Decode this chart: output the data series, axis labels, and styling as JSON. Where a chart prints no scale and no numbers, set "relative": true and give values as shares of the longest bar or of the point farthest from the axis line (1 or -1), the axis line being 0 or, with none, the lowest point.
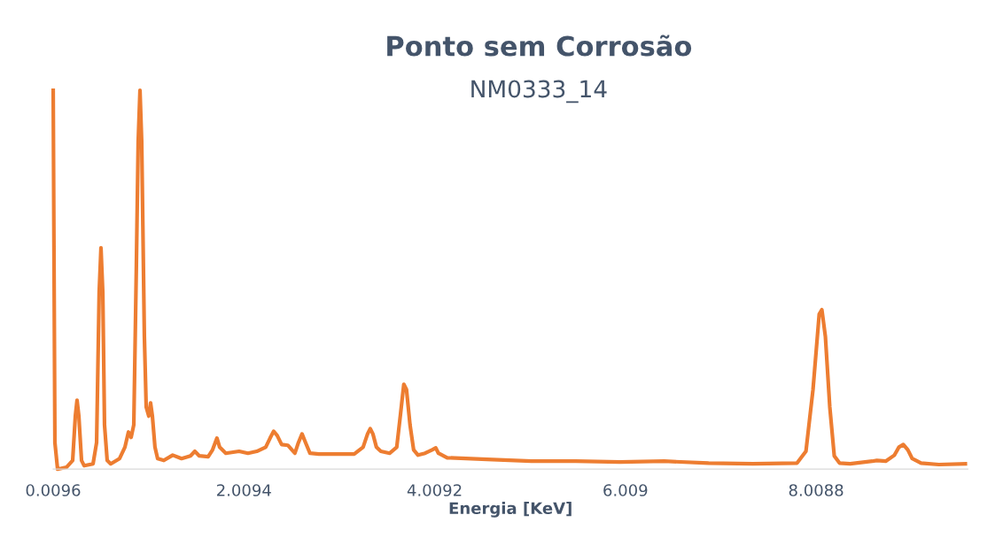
{
  "chart_data": {
    "type": "line",
    "title": "Ponto sem Corrosão",
    "subtitle": "NM0333_14",
    "xlabel": "Energia [KeV]",
    "relative": true,
    "xlim": [
      0.0096,
      9.6
    ],
    "xticks": [
      0.0096,
      2.0094,
      4.0092,
      6.009,
      8.0088
    ],
    "grid": false,
    "legend": false,
    "marker": "none",
    "line_style": "solid",
    "series": [
      {
        "color": "#ed7d31",
        "x": [
          0.01,
          0.028,
          0.056,
          0.149,
          0.214,
          0.242,
          0.26,
          0.279,
          0.307,
          0.335,
          0.428,
          0.465,
          0.492,
          0.511,
          0.53,
          0.548,
          0.576,
          0.613,
          0.706,
          0.762,
          0.799,
          0.827,
          0.855,
          0.882,
          0.901,
          0.92,
          0.938,
          0.966,
          0.985,
          1.012,
          1.031,
          1.05,
          1.077,
          1.105,
          1.17,
          1.263,
          1.356,
          1.449,
          1.495,
          1.542,
          1.635,
          1.681,
          1.727,
          1.755,
          1.82,
          1.959,
          2.052,
          2.145,
          2.238,
          2.284,
          2.321,
          2.358,
          2.405,
          2.47,
          2.544,
          2.581,
          2.619,
          2.656,
          2.702,
          2.795,
          2.981,
          3.166,
          3.259,
          3.306,
          3.334,
          3.362,
          3.399,
          3.445,
          3.538,
          3.612,
          3.649,
          3.686,
          3.714,
          3.751,
          3.789,
          3.835,
          3.909,
          3.983,
          4.021,
          4.049,
          4.141,
          4.559,
          5.023,
          5.488,
          5.952,
          6.416,
          6.881,
          7.345,
          7.809,
          7.902,
          7.976,
          8.041,
          8.069,
          8.106,
          8.152,
          8.199,
          8.254,
          8.366,
          8.598,
          8.645,
          8.738,
          8.83,
          8.877,
          8.923,
          8.97,
          9.016,
          9.109,
          9.295,
          9.573
        ],
        "values": [
          1.0,
          0.07,
          0,
          0.005,
          0.023,
          0.14,
          0.182,
          0.14,
          0.023,
          0.009,
          0.014,
          0.07,
          0.467,
          0.584,
          0.467,
          0.117,
          0.023,
          0.014,
          0.028,
          0.058,
          0.098,
          0.084,
          0.117,
          0.537,
          0.864,
          1.0,
          0.864,
          0.35,
          0.164,
          0.14,
          0.175,
          0.14,
          0.058,
          0.028,
          0.023,
          0.037,
          0.028,
          0.035,
          0.047,
          0.035,
          0.033,
          0.051,
          0.082,
          0.058,
          0.042,
          0.047,
          0.042,
          0.047,
          0.058,
          0.082,
          0.1,
          0.089,
          0.065,
          0.063,
          0.042,
          0.07,
          0.093,
          0.07,
          0.042,
          0.04,
          0.04,
          0.04,
          0.058,
          0.093,
          0.107,
          0.093,
          0.058,
          0.047,
          0.042,
          0.058,
          0.14,
          0.224,
          0.21,
          0.117,
          0.051,
          0.037,
          0.042,
          0.051,
          0.056,
          0.042,
          0.03,
          0.026,
          0.021,
          0.021,
          0.019,
          0.021,
          0.016,
          0.014,
          0.016,
          0.047,
          0.21,
          0.409,
          0.421,
          0.35,
          0.164,
          0.035,
          0.016,
          0.014,
          0.021,
          0.023,
          0.021,
          0.037,
          0.058,
          0.065,
          0.051,
          0.028,
          0.016,
          0.012,
          0.014
        ]
      }
    ]
  }
}
